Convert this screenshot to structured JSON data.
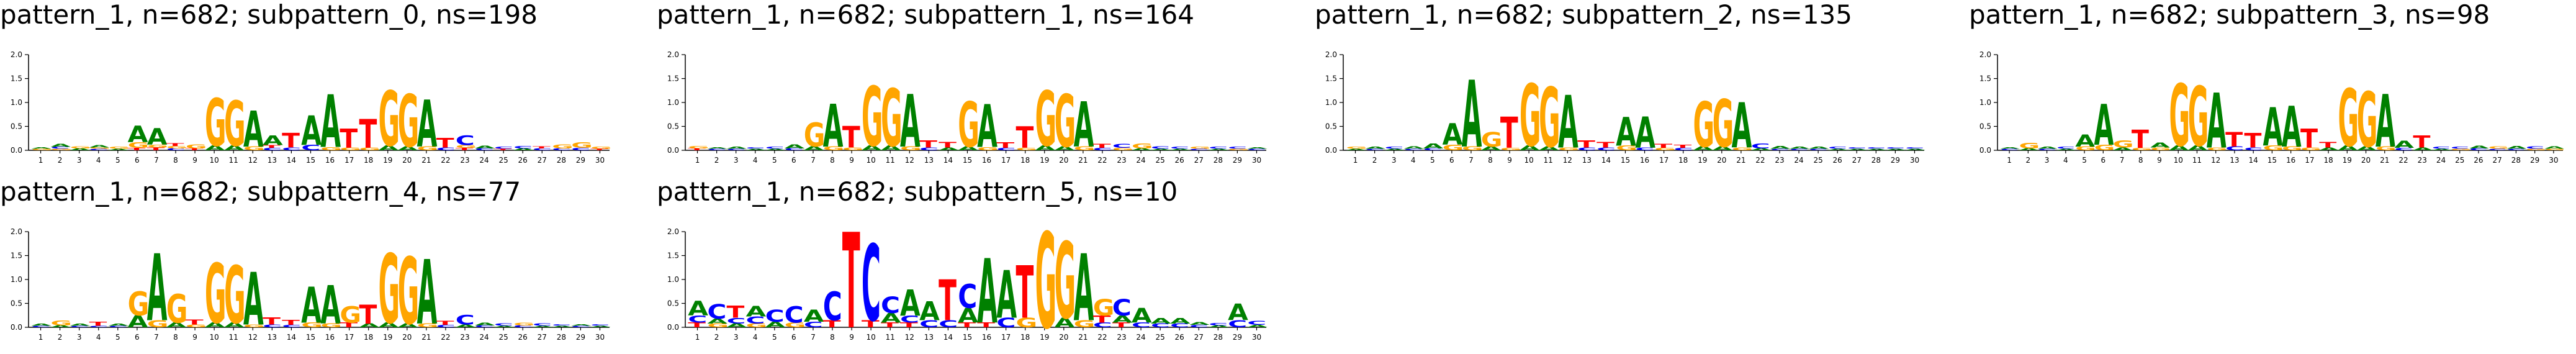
{
  "chart_data": [
    {
      "type": "sequence-logo",
      "title": "pattern_1, n=682; subpattern_0, ns=198",
      "ylim": [
        0,
        2.0
      ],
      "yticks": [
        "0.0",
        "0.5",
        "1.0",
        "1.5",
        "2.0"
      ],
      "xticks": [
        "1",
        "2",
        "3",
        "4",
        "5",
        "6",
        "7",
        "8",
        "9",
        "10",
        "11",
        "12",
        "13",
        "14",
        "15",
        "16",
        "17",
        "18",
        "19",
        "20",
        "21",
        "22",
        "23",
        "24",
        "25",
        "26",
        "27",
        "28",
        "29",
        "30"
      ],
      "positions": [
        {
          "G": 0.03,
          "A": 0.03
        },
        {
          "A": 0.07,
          "C": 0.04,
          "G": 0.03
        },
        {
          "A": 0.04,
          "G": 0.04
        },
        {
          "A": 0.05,
          "C": 0.03,
          "G": 0.03
        },
        {
          "G": 0.04,
          "A": 0.03
        },
        {
          "A": 0.35,
          "G": 0.12,
          "T": 0.05
        },
        {
          "A": 0.35,
          "T": 0.06,
          "G": 0.06
        },
        {
          "T": 0.06,
          "G": 0.05,
          "C": 0.04
        },
        {
          "G": 0.08,
          "T": 0.04
        },
        {
          "G": 1.0,
          "A": 0.1
        },
        {
          "G": 0.95,
          "A": 0.1
        },
        {
          "A": 0.75,
          "G": 0.08
        },
        {
          "A": 0.2,
          "T": 0.06,
          "C": 0.05
        },
        {
          "T": 0.3,
          "C": 0.06
        },
        {
          "A": 0.62,
          "C": 0.12
        },
        {
          "A": 1.1,
          "G": 0.07
        },
        {
          "T": 0.4,
          "G": 0.06
        },
        {
          "T": 0.6,
          "G": 0.06
        },
        {
          "G": 1.15,
          "A": 0.1
        },
        {
          "G": 1.1,
          "A": 0.08
        },
        {
          "A": 0.98,
          "G": 0.08
        },
        {
          "T": 0.2,
          "C": 0.06
        },
        {
          "C": 0.2,
          "G": 0.06,
          "T": 0.05
        },
        {
          "A": 0.06,
          "C": 0.04
        },
        {
          "C": 0.04,
          "T": 0.03
        },
        {
          "C": 0.05,
          "A": 0.04
        },
        {
          "C": 0.04,
          "T": 0.04
        },
        {
          "G": 0.08,
          "C": 0.04
        },
        {
          "G": 0.12,
          "C": 0.05
        },
        {
          "G": 0.04,
          "T": 0.03
        }
      ]
    },
    {
      "type": "sequence-logo",
      "title": "pattern_1, n=682; subpattern_1, ns=164",
      "ylim": [
        0,
        2.0
      ],
      "yticks": [
        "0.0",
        "0.5",
        "1.0",
        "1.5",
        "2.0"
      ],
      "xticks": [
        "1",
        "2",
        "3",
        "4",
        "5",
        "6",
        "7",
        "8",
        "9",
        "10",
        "11",
        "12",
        "13",
        "14",
        "15",
        "16",
        "17",
        "18",
        "19",
        "20",
        "21",
        "22",
        "23",
        "24",
        "25",
        "26",
        "27",
        "28",
        "29",
        "30"
      ],
      "positions": [
        {
          "G": 0.05,
          "T": 0.04
        },
        {
          "C": 0.03,
          "A": 0.03
        },
        {
          "A": 0.04,
          "C": 0.03
        },
        {
          "A": 0.03,
          "C": 0.03
        },
        {
          "C": 0.04,
          "A": 0.03
        },
        {
          "A": 0.08,
          "C": 0.04
        },
        {
          "G": 0.5,
          "A": 0.08
        },
        {
          "A": 0.9,
          "G": 0.08
        },
        {
          "T": 0.45,
          "G": 0.06
        },
        {
          "G": 1.25,
          "A": 0.1
        },
        {
          "G": 1.2,
          "A": 0.1
        },
        {
          "A": 1.1,
          "G": 0.08
        },
        {
          "T": 0.15,
          "C": 0.06
        },
        {
          "T": 0.12,
          "A": 0.06
        },
        {
          "G": 0.95,
          "A": 0.08
        },
        {
          "A": 0.9,
          "G": 0.07
        },
        {
          "T": 0.12,
          "C": 0.05
        },
        {
          "T": 0.45,
          "G": 0.05
        },
        {
          "G": 1.15,
          "A": 0.1
        },
        {
          "G": 1.1,
          "A": 0.08
        },
        {
          "A": 0.95,
          "G": 0.08
        },
        {
          "T": 0.08,
          "C": 0.05
        },
        {
          "C": 0.08,
          "G": 0.05
        },
        {
          "G": 0.1,
          "A": 0.04
        },
        {
          "C": 0.05,
          "A": 0.03
        },
        {
          "C": 0.04,
          "A": 0.03
        },
        {
          "G": 0.04,
          "C": 0.03
        },
        {
          "C": 0.04,
          "A": 0.03
        },
        {
          "C": 0.04,
          "G": 0.03
        },
        {
          "C": 0.03,
          "A": 0.03
        }
      ]
    },
    {
      "type": "sequence-logo",
      "title": "pattern_1, n=682; subpattern_2, ns=135",
      "ylim": [
        0,
        2.0
      ],
      "yticks": [
        "0.0",
        "0.5",
        "1.0",
        "1.5",
        "2.0"
      ],
      "xticks": [
        "1",
        "2",
        "3",
        "4",
        "5",
        "6",
        "7",
        "8",
        "9",
        "10",
        "11",
        "12",
        "13",
        "14",
        "15",
        "16",
        "17",
        "18",
        "19",
        "20",
        "21",
        "22",
        "23",
        "24",
        "25",
        "26",
        "27",
        "28",
        "29",
        "30"
      ],
      "positions": [
        {
          "G": 0.04,
          "A": 0.03
        },
        {
          "A": 0.04,
          "C": 0.03
        },
        {
          "C": 0.04,
          "A": 0.03
        },
        {
          "A": 0.05,
          "C": 0.03
        },
        {
          "A": 0.1,
          "C": 0.04
        },
        {
          "A": 0.45,
          "G": 0.12
        },
        {
          "A": 1.4,
          "G": 0.08
        },
        {
          "G": 0.3,
          "A": 0.08
        },
        {
          "T": 0.65,
          "G": 0.05
        },
        {
          "G": 1.3,
          "A": 0.1
        },
        {
          "G": 1.25,
          "A": 0.08
        },
        {
          "A": 1.1,
          "G": 0.06
        },
        {
          "T": 0.15,
          "C": 0.06
        },
        {
          "T": 0.12,
          "C": 0.06
        },
        {
          "A": 0.6,
          "G": 0.1
        },
        {
          "A": 0.65,
          "C": 0.06
        },
        {
          "T": 0.08,
          "G": 0.05
        },
        {
          "T": 0.07,
          "C": 0.05
        },
        {
          "G": 0.95,
          "A": 0.08
        },
        {
          "G": 1.0,
          "A": 0.08
        },
        {
          "A": 0.95,
          "G": 0.06
        },
        {
          "C": 0.1,
          "A": 0.04
        },
        {
          "A": 0.06,
          "C": 0.03
        },
        {
          "A": 0.04,
          "C": 0.03
        },
        {
          "A": 0.04,
          "C": 0.03
        },
        {
          "C": 0.04,
          "A": 0.03
        },
        {
          "A": 0.03,
          "C": 0.03
        },
        {
          "A": 0.03,
          "C": 0.03
        },
        {
          "A": 0.03,
          "C": 0.03
        },
        {
          "A": 0.03,
          "C": 0.03
        }
      ]
    },
    {
      "type": "sequence-logo",
      "title": "pattern_1, n=682; subpattern_3, ns=98",
      "ylim": [
        0,
        2.0
      ],
      "yticks": [
        "0.0",
        "0.5",
        "1.0",
        "1.5",
        "2.0"
      ],
      "xticks": [
        "1",
        "2",
        "3",
        "4",
        "5",
        "6",
        "7",
        "8",
        "9",
        "10",
        "11",
        "12",
        "13",
        "14",
        "15",
        "16",
        "17",
        "18",
        "19",
        "20",
        "21",
        "22",
        "23",
        "24",
        "25",
        "26",
        "27",
        "28",
        "29",
        "30"
      ],
      "positions": [
        {
          "C": 0.03,
          "A": 0.03
        },
        {
          "G": 0.12,
          "A": 0.04
        },
        {
          "A": 0.04,
          "C": 0.03
        },
        {
          "C": 0.04,
          "A": 0.03
        },
        {
          "A": 0.25,
          "G": 0.08
        },
        {
          "A": 0.85,
          "G": 0.12
        },
        {
          "G": 0.15,
          "A": 0.06
        },
        {
          "T": 0.38,
          "G": 0.05
        },
        {
          "A": 0.1,
          "G": 0.06
        },
        {
          "G": 1.3,
          "A": 0.1
        },
        {
          "G": 1.25,
          "A": 0.1
        },
        {
          "A": 1.15,
          "G": 0.06
        },
        {
          "T": 0.3,
          "C": 0.08
        },
        {
          "T": 0.3,
          "C": 0.06
        },
        {
          "A": 0.8,
          "G": 0.1
        },
        {
          "A": 0.85,
          "G": 0.08
        },
        {
          "T": 0.4,
          "G": 0.06
        },
        {
          "T": 0.12,
          "A": 0.06
        },
        {
          "G": 1.2,
          "A": 0.1
        },
        {
          "G": 1.15,
          "A": 0.08
        },
        {
          "A": 1.1,
          "G": 0.08
        },
        {
          "A": 0.15,
          "C": 0.05
        },
        {
          "T": 0.25,
          "A": 0.06
        },
        {
          "C": 0.04,
          "A": 0.03
        },
        {
          "C": 0.04,
          "G": 0.03
        },
        {
          "A": 0.06,
          "C": 0.04
        },
        {
          "G": 0.05,
          "C": 0.03
        },
        {
          "A": 0.06,
          "C": 0.03
        },
        {
          "C": 0.05,
          "G": 0.03
        },
        {
          "A": 0.05,
          "G": 0.03
        }
      ]
    },
    {
      "type": "sequence-logo",
      "title": "pattern_1, n=682; subpattern_4, ns=77",
      "ylim": [
        0,
        2.0
      ],
      "yticks": [
        "0.0",
        "0.5",
        "1.0",
        "1.5",
        "2.0"
      ],
      "xticks": [
        "1",
        "2",
        "3",
        "4",
        "5",
        "6",
        "7",
        "8",
        "9",
        "10",
        "11",
        "12",
        "13",
        "14",
        "15",
        "16",
        "17",
        "18",
        "19",
        "20",
        "21",
        "22",
        "23",
        "24",
        "25",
        "26",
        "27",
        "28",
        "29",
        "30"
      ],
      "positions": [
        {
          "A": 0.04,
          "C": 0.03
        },
        {
          "G": 0.1,
          "A": 0.04
        },
        {
          "A": 0.04,
          "C": 0.03
        },
        {
          "T": 0.08,
          "C": 0.03
        },
        {
          "A": 0.04,
          "C": 0.03
        },
        {
          "G": 0.5,
          "A": 0.25
        },
        {
          "A": 1.4,
          "G": 0.15
        },
        {
          "G": 0.6,
          "A": 0.1
        },
        {
          "T": 0.1,
          "G": 0.06
        },
        {
          "G": 1.25,
          "A": 0.1
        },
        {
          "G": 1.2,
          "A": 0.1
        },
        {
          "A": 1.1,
          "G": 0.06
        },
        {
          "T": 0.15,
          "C": 0.06
        },
        {
          "T": 0.1,
          "C": 0.05
        },
        {
          "A": 0.75,
          "G": 0.1
        },
        {
          "A": 0.8,
          "G": 0.08
        },
        {
          "G": 0.35,
          "T": 0.1
        },
        {
          "T": 0.4,
          "A": 0.08
        },
        {
          "G": 1.45,
          "A": 0.1
        },
        {
          "G": 1.4,
          "A": 0.08
        },
        {
          "A": 1.35,
          "G": 0.08
        },
        {
          "T": 0.08,
          "C": 0.05
        },
        {
          "C": 0.2,
          "A": 0.06
        },
        {
          "A": 0.06,
          "C": 0.04
        },
        {
          "C": 0.05,
          "A": 0.03
        },
        {
          "G": 0.06,
          "C": 0.04
        },
        {
          "C": 0.05,
          "A": 0.03
        },
        {
          "A": 0.03,
          "C": 0.03
        },
        {
          "C": 0.03,
          "A": 0.03
        },
        {
          "A": 0.03,
          "C": 0.03
        }
      ]
    },
    {
      "type": "sequence-logo",
      "title": "pattern_1, n=682; subpattern_5, ns=10",
      "ylim": [
        0,
        2.0
      ],
      "yticks": [
        "0.0",
        "0.5",
        "1.0",
        "1.5",
        "2.0"
      ],
      "xticks": [
        "1",
        "2",
        "3",
        "4",
        "5",
        "6",
        "7",
        "8",
        "9",
        "10",
        "11",
        "12",
        "13",
        "14",
        "15",
        "16",
        "17",
        "18",
        "19",
        "20",
        "21",
        "22",
        "23",
        "24",
        "25",
        "26",
        "27",
        "28",
        "29",
        "30"
      ],
      "positions": [
        {
          "A": 0.3,
          "C": 0.15,
          "T": 0.1
        },
        {
          "C": 0.3,
          "A": 0.1,
          "G": 0.08
        },
        {
          "T": 0.25,
          "C": 0.12,
          "A": 0.08
        },
        {
          "A": 0.22,
          "C": 0.15,
          "G": 0.08
        },
        {
          "C": 0.25,
          "A": 0.12
        },
        {
          "C": 0.35,
          "G": 0.1
        },
        {
          "A": 0.25,
          "C": 0.12
        },
        {
          "C": 0.6,
          "T": 0.15
        },
        {
          "T": 2.0
        },
        {
          "C": 1.6,
          "T": 0.15
        },
        {
          "C": 0.35,
          "A": 0.2,
          "T": 0.1
        },
        {
          "A": 0.55,
          "C": 0.15,
          "T": 0.1
        },
        {
          "A": 0.4,
          "C": 0.15
        },
        {
          "T": 0.85,
          "C": 0.15
        },
        {
          "C": 0.5,
          "A": 0.3,
          "T": 0.1
        },
        {
          "A": 1.35,
          "T": 0.1
        },
        {
          "A": 1.0,
          "C": 0.2
        },
        {
          "T": 1.1,
          "G": 0.2
        },
        {
          "G": 2.0
        },
        {
          "G": 1.6,
          "A": 0.2
        },
        {
          "A": 1.4,
          "G": 0.15
        },
        {
          "G": 0.35,
          "T": 0.15,
          "C": 0.1
        },
        {
          "C": 0.35,
          "A": 0.15,
          "T": 0.1
        },
        {
          "A": 0.3,
          "C": 0.1
        },
        {
          "A": 0.12,
          "C": 0.08
        },
        {
          "A": 0.12,
          "C": 0.08
        },
        {
          "A": 0.06,
          "C": 0.05
        },
        {
          "C": 0.05,
          "A": 0.04
        },
        {
          "A": 0.35,
          "C": 0.15
        },
        {
          "C": 0.08,
          "A": 0.05
        }
      ]
    }
  ],
  "colors": {
    "A": "#008000",
    "C": "#0000ff",
    "G": "#ffa500",
    "T": "#ff0000"
  }
}
